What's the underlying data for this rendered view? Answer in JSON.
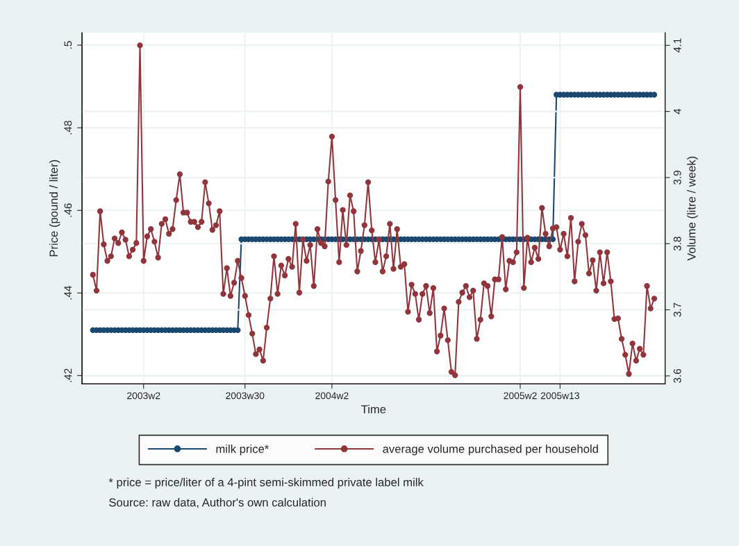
{
  "chart_data": {
    "type": "line",
    "xlabel": "Time",
    "ylabel": "Price (pound / liter)",
    "y2label": "Volume (litre / week)",
    "categories": [
      null,
      null,
      null,
      null,
      null,
      null,
      null,
      null,
      null,
      null,
      null,
      null,
      null,
      null,
      "2003w2",
      null,
      null,
      null,
      null,
      null,
      null,
      null,
      null,
      null,
      null,
      null,
      null,
      null,
      null,
      null,
      null,
      null,
      null,
      null,
      null,
      null,
      null,
      null,
      null,
      null,
      null,
      null,
      "2003w30",
      null,
      null,
      null,
      null,
      null,
      null,
      null,
      null,
      null,
      null,
      null,
      null,
      null,
      null,
      null,
      null,
      null,
      null,
      null,
      null,
      null,
      null,
      null,
      "2004w2",
      null,
      null,
      null,
      null,
      null,
      null,
      null,
      null,
      null,
      null,
      null,
      null,
      null,
      null,
      null,
      null,
      null,
      null,
      null,
      null,
      null,
      null,
      null,
      null,
      null,
      null,
      null,
      null,
      null,
      null,
      null,
      null,
      null,
      null,
      null,
      null,
      null,
      null,
      null,
      null,
      null,
      null,
      null,
      null,
      null,
      null,
      null,
      null,
      null,
      null,
      null,
      "2005w2",
      null,
      null,
      null,
      null,
      null,
      null,
      null,
      null,
      null,
      null,
      "2005w13",
      null,
      null,
      null,
      null,
      null,
      null,
      null,
      null,
      null,
      null,
      null,
      null,
      null,
      null,
      null,
      null,
      null,
      null,
      null,
      null,
      null,
      null,
      null,
      null,
      null,
      null
    ],
    "series": [
      {
        "name": "milk price*",
        "color": "#1a476f",
        "axis": "y",
        "values": [
          0.431,
          0.431,
          0.431,
          0.431,
          0.431,
          0.431,
          0.431,
          0.431,
          0.431,
          0.431,
          0.431,
          0.431,
          0.431,
          0.431,
          0.431,
          0.431,
          0.431,
          0.431,
          0.431,
          0.431,
          0.431,
          0.431,
          0.431,
          0.431,
          0.431,
          0.431,
          0.431,
          0.431,
          0.431,
          0.431,
          0.431,
          0.431,
          0.431,
          0.431,
          0.431,
          0.431,
          0.431,
          0.431,
          0.431,
          0.431,
          0.431,
          0.453,
          0.453,
          0.453,
          0.453,
          0.453,
          0.453,
          0.453,
          0.453,
          0.453,
          0.453,
          0.453,
          0.453,
          0.453,
          0.453,
          0.453,
          0.453,
          0.453,
          0.453,
          0.453,
          0.453,
          0.453,
          0.453,
          0.453,
          0.453,
          0.453,
          0.453,
          0.453,
          0.453,
          0.453,
          0.453,
          0.453,
          0.453,
          0.453,
          0.453,
          0.453,
          0.453,
          0.453,
          0.453,
          0.453,
          0.453,
          0.453,
          0.453,
          0.453,
          0.453,
          0.453,
          0.453,
          0.453,
          0.453,
          0.453,
          0.453,
          0.453,
          0.453,
          0.453,
          0.453,
          0.453,
          0.453,
          0.453,
          0.453,
          0.453,
          0.453,
          0.453,
          0.453,
          0.453,
          0.453,
          0.453,
          0.453,
          0.453,
          0.453,
          0.453,
          0.453,
          0.453,
          0.453,
          0.453,
          0.453,
          0.453,
          0.453,
          0.453,
          0.453,
          0.453,
          0.453,
          0.453,
          0.453,
          0.453,
          0.453,
          0.453,
          0.453,
          0.453,
          0.488,
          0.488,
          0.488,
          0.488,
          0.488,
          0.488,
          0.488,
          0.488,
          0.488,
          0.488,
          0.488,
          0.488,
          0.488,
          0.488,
          0.488,
          0.488,
          0.488,
          0.488,
          0.488,
          0.488,
          0.488,
          0.488,
          0.488,
          0.488,
          0.488,
          0.488,
          0.488,
          0.488
        ]
      },
      {
        "name": "average volume purchased per household",
        "color": "#90353b",
        "axis": "y2",
        "values": [
          3.753,
          3.729,
          3.849,
          3.799,
          3.774,
          3.781,
          3.808,
          3.801,
          3.817,
          3.806,
          3.781,
          3.791,
          3.801,
          4.1,
          3.774,
          3.811,
          3.822,
          3.803,
          3.779,
          3.83,
          3.837,
          3.815,
          3.822,
          3.866,
          3.905,
          3.847,
          3.847,
          3.833,
          3.833,
          3.825,
          3.833,
          3.893,
          3.861,
          3.821,
          3.828,
          3.849,
          3.724,
          3.763,
          3.721,
          3.741,
          3.774,
          3.748,
          3.721,
          3.692,
          3.664,
          3.633,
          3.64,
          3.623,
          3.673,
          3.717,
          3.781,
          3.724,
          3.767,
          3.752,
          3.777,
          3.765,
          3.83,
          3.726,
          3.806,
          3.774,
          3.798,
          3.736,
          3.822,
          3.801,
          3.796,
          3.894,
          3.962,
          3.866,
          3.772,
          3.851,
          3.798,
          3.873,
          3.849,
          3.758,
          3.789,
          3.828,
          3.893,
          3.82,
          3.772,
          3.806,
          3.758,
          3.781,
          3.83,
          3.762,
          3.822,
          3.765,
          3.769,
          3.697,
          3.738,
          3.724,
          3.685,
          3.724,
          3.736,
          3.695,
          3.733,
          3.637,
          3.661,
          3.702,
          3.654,
          3.606,
          3.601,
          3.712,
          3.726,
          3.736,
          3.719,
          3.729,
          3.656,
          3.685,
          3.74,
          3.736,
          3.69,
          3.746,
          3.746,
          3.81,
          3.731,
          3.774,
          3.772,
          3.787,
          4.037,
          3.733,
          3.809,
          3.772,
          3.794,
          3.777,
          3.854,
          3.815,
          3.796,
          3.823,
          3.825,
          3.791,
          3.815,
          3.781,
          3.839,
          3.743,
          3.803,
          3.83,
          3.813,
          3.755,
          3.775,
          3.729,
          3.787,
          3.74,
          3.787,
          3.743,
          3.686,
          3.687,
          3.656,
          3.632,
          3.603,
          3.649,
          3.623,
          3.641,
          3.632,
          3.736,
          3.702,
          3.717
        ]
      }
    ],
    "ylim": [
      0.418,
      0.503
    ],
    "yticks": [
      {
        "value": 0.42,
        "label": ".42"
      },
      {
        "value": 0.44,
        "label": ".44"
      },
      {
        "value": 0.46,
        "label": ".46"
      },
      {
        "value": 0.48,
        "label": ".48"
      },
      {
        "value": 0.5,
        "label": ".5"
      }
    ],
    "y2lim": [
      3.588,
      4.119
    ],
    "y2ticks": [
      3.6,
      3.7,
      3.8,
      3.9,
      4,
      4.1
    ],
    "grid": true,
    "legend": "bottom",
    "marker": "circle",
    "line_style": "solid",
    "annotations": [
      "* price = price/liter of a 4-pint semi-skimmed private label milk",
      "Source: raw data, Author's own calculation"
    ]
  }
}
